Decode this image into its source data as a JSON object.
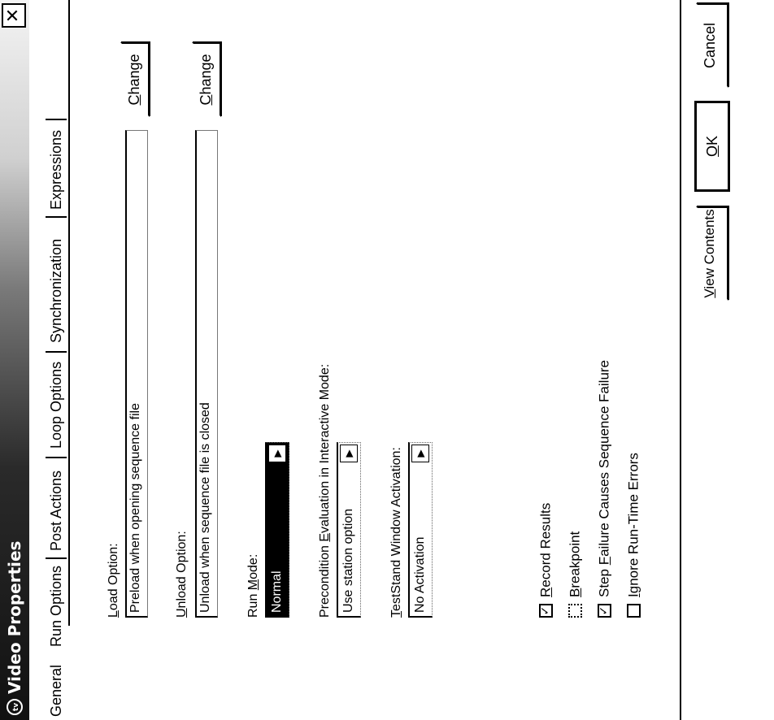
{
  "window": {
    "title": "Video Properties",
    "app_icon_text": "tv",
    "close_glyph": "✕"
  },
  "tabs": [
    {
      "label": "General",
      "active": false
    },
    {
      "label": "Run Options",
      "active": true
    },
    {
      "label": "Post Actions",
      "active": false
    },
    {
      "label": "Loop Options",
      "active": false
    },
    {
      "label": "Synchronization",
      "active": false
    },
    {
      "label": "Expressions",
      "active": false
    }
  ],
  "load_option": {
    "label_first": "L",
    "label_rest": "oad Option:",
    "value": "Preload when opening sequence file",
    "change_first": "C",
    "change_rest": "hange"
  },
  "unload_option": {
    "label_first": "U",
    "label_rest": "nload Option:",
    "value": "Unload when sequence file is closed",
    "change_first": "C",
    "change_rest": "hange"
  },
  "run_mode": {
    "label_pre": "Run ",
    "label_u": "M",
    "label_post": "ode:",
    "value": "Normal",
    "dropdown_icon": "▶"
  },
  "precondition": {
    "label_pre": "Precondition ",
    "label_u": "E",
    "label_post": "valuation in Interactive Mode:",
    "value": "Use station option",
    "dropdown_icon": "▶"
  },
  "testStand_activation": {
    "label_u": "T",
    "label_post": "estStand Window Activation:",
    "value": "No Activation",
    "dropdown_icon": "▶"
  },
  "checkboxes": [
    {
      "u": "R",
      "rest": "ecord Results",
      "pre": "",
      "checked": true,
      "mark": "✓"
    },
    {
      "u": "B",
      "rest": "reakpoint",
      "pre": "",
      "checked": false,
      "mark": ""
    },
    {
      "u": "F",
      "rest": "ailure Causes Sequence Failure",
      "pre": "Step ",
      "checked": true,
      "mark": "✓"
    },
    {
      "u": "I",
      "rest": "gnore Run-Time Errors",
      "pre": "",
      "checked": false,
      "mark": ""
    }
  ],
  "buttons": {
    "view_contents_u": "V",
    "view_contents_rest": "iew Contents",
    "ok_u": "O",
    "ok_rest": "K",
    "cancel": "Cancel"
  }
}
